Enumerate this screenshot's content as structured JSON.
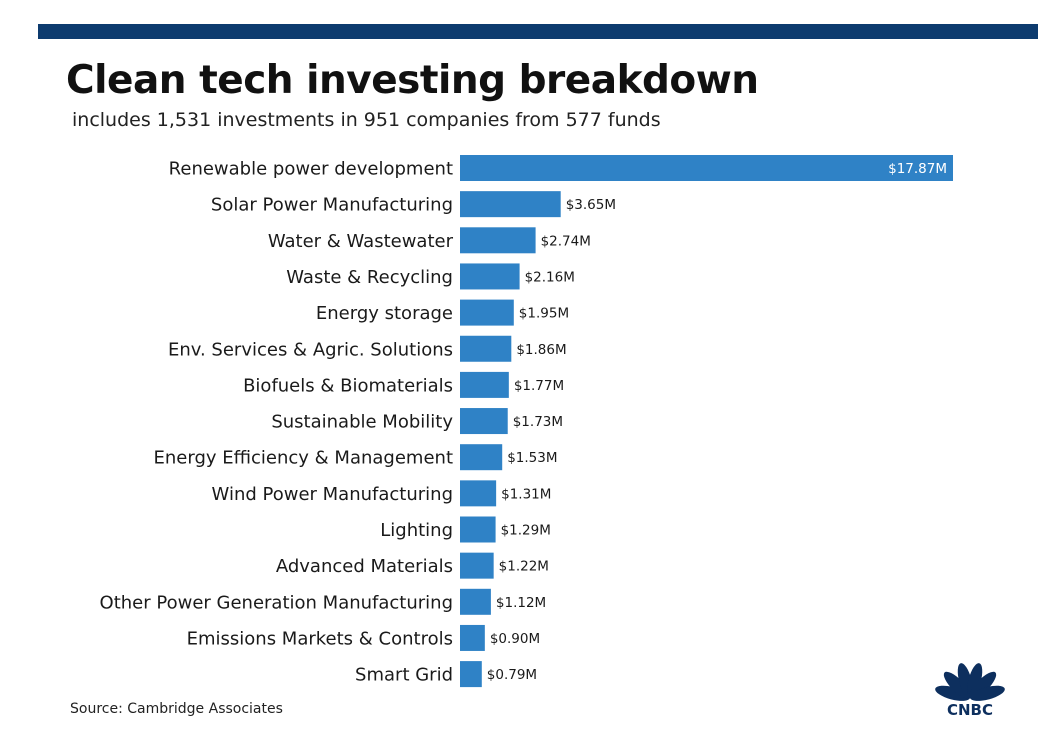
{
  "title": "Clean tech investing breakdown",
  "subtitle": "includes 1,531 investments in 951 companies from 577 funds",
  "source": "Source: Cambridge Associates",
  "logo_text": "CNBC",
  "colors": {
    "bar": "#2f82c6",
    "top_bar": "#0d3b6e",
    "label_inside": "#ffffff",
    "label_outside": "#1a1a1a",
    "logo": "#0d2f5e"
  },
  "chart_data": {
    "type": "bar",
    "orientation": "horizontal",
    "title": "Clean tech investing breakdown",
    "subtitle": "includes 1,531 investments in 951 companies from 577 funds",
    "xlabel": "",
    "ylabel": "",
    "grid": false,
    "categories": [
      "Renewable power development",
      "Solar Power Manufacturing",
      "Water & Wastewater",
      "Waste & Recycling",
      "Energy storage",
      "Env. Services & Agric. Solutions",
      "Biofuels & Biomaterials",
      "Sustainable Mobility",
      "Energy Efficiency & Management",
      "Wind Power Manufacturing",
      "Lighting",
      "Advanced Materials",
      "Other Power Generation Manufacturing",
      "Emissions Markets & Controls",
      "Smart Grid"
    ],
    "values": [
      17.87,
      3.65,
      2.74,
      2.16,
      1.95,
      1.86,
      1.77,
      1.73,
      1.53,
      1.31,
      1.29,
      1.22,
      1.12,
      0.9,
      0.79
    ],
    "value_labels": [
      "$17.87M",
      "$3.65M",
      "$2.74M",
      "$2.16M",
      "$1.95M",
      "$1.86M",
      "$1.77M",
      "$1.73M",
      "$1.53M",
      "$1.31M",
      "$1.29M",
      "$1.22M",
      "$1.12M",
      "$0.90M",
      "$0.79M"
    ]
  }
}
